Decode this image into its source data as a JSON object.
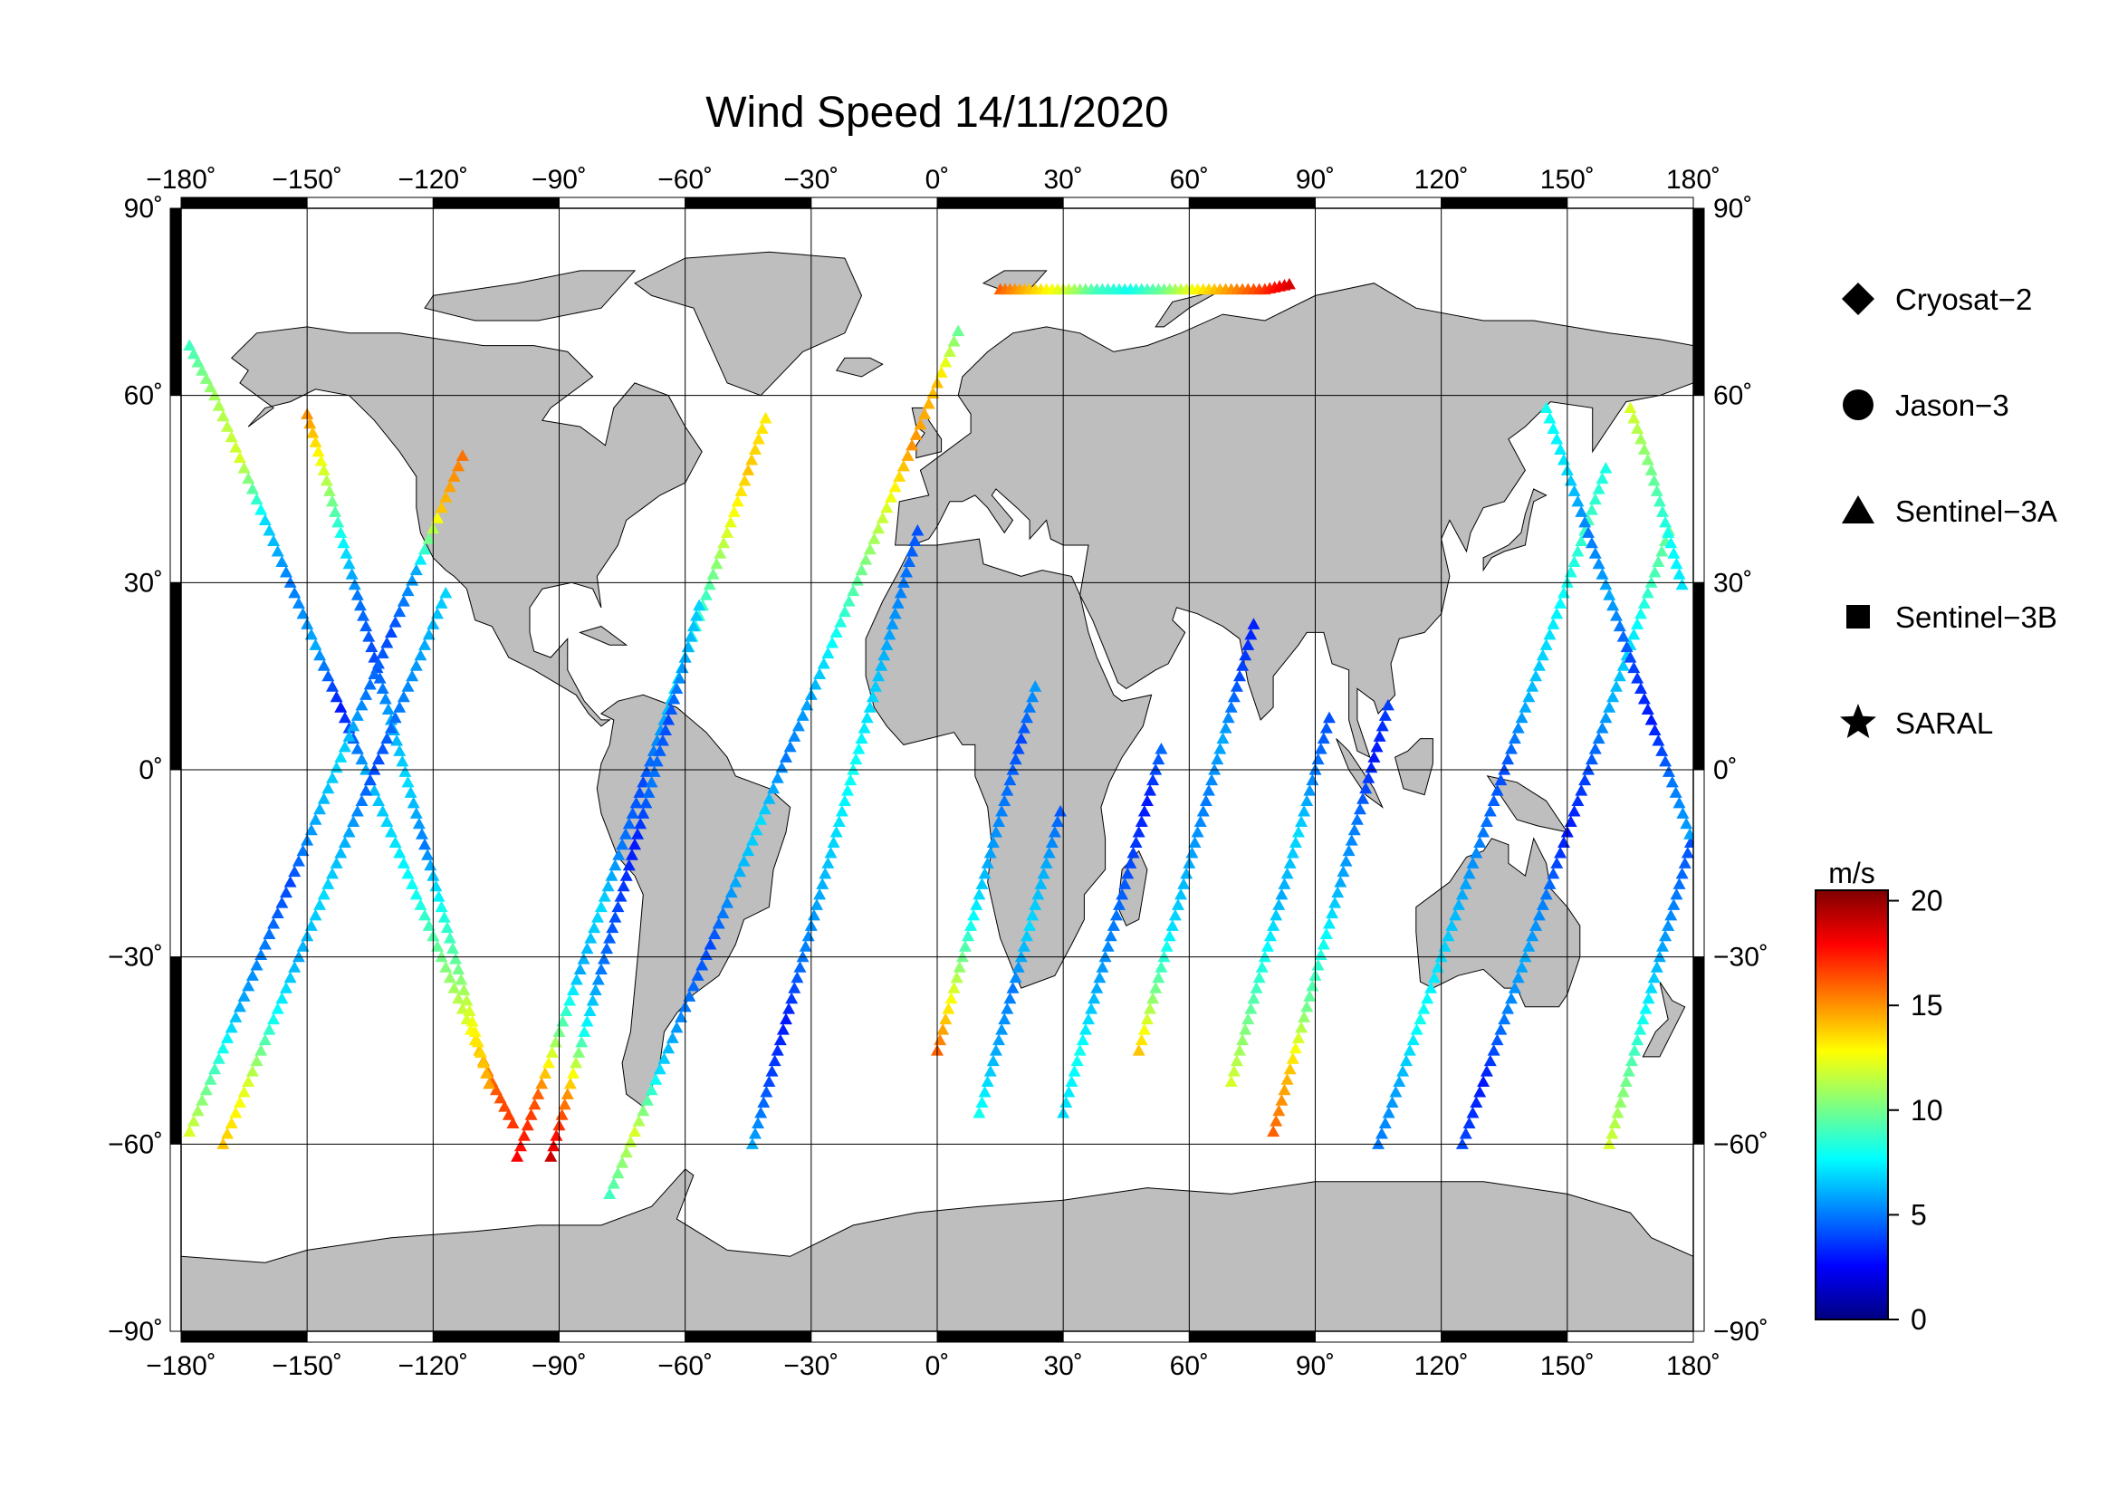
{
  "title": "Wind Speed 14/11/2020",
  "map": {
    "lon_range": [
      -180,
      180
    ],
    "lat_range": [
      -90,
      90
    ],
    "lon_ticks": [
      -180,
      -150,
      -120,
      -90,
      -60,
      -30,
      0,
      30,
      60,
      90,
      120,
      150,
      180
    ],
    "lat_ticks": [
      90,
      60,
      30,
      0,
      -30,
      -60,
      -90
    ],
    "lon_tick_labels": [
      "−180˚",
      "−150˚",
      "−120˚",
      "−90˚",
      "−60˚",
      "−30˚",
      "0˚",
      "30˚",
      "60˚",
      "90˚",
      "120˚",
      "150˚",
      "180˚"
    ],
    "lat_tick_labels": [
      "90˚",
      "60˚",
      "30˚",
      "0˚",
      "−30˚",
      "−60˚",
      "−90˚"
    ],
    "land_color": "#bebebe",
    "ocean_color": "#ffffff",
    "grid": true
  },
  "legend": {
    "items": [
      {
        "label": "Cryosat−2",
        "symbol": "diamond"
      },
      {
        "label": "Jason−3",
        "symbol": "circle"
      },
      {
        "label": "Sentinel−3A",
        "symbol": "triangle"
      },
      {
        "label": "Sentinel−3B",
        "symbol": "square"
      },
      {
        "label": "SARAL",
        "symbol": "star"
      }
    ]
  },
  "colorbar": {
    "unit": "m/s",
    "min": 0,
    "max": 20.5,
    "ticks": [
      0,
      5,
      10,
      15,
      20
    ],
    "tick_labels": [
      "0",
      "5",
      "10",
      "15",
      "20"
    ],
    "colormap": "jet"
  },
  "chart_data": {
    "type": "scatter",
    "description_units": "lon/lat degrees, wind speed m/s",
    "tracks": [
      {
        "satellite": "Sentinel-3A",
        "points": [
          [
            -178,
            68,
            9
          ],
          [
            -172,
            60,
            11
          ],
          [
            -166,
            50,
            12
          ],
          [
            -160,
            40,
            7
          ],
          [
            -154,
            30,
            5
          ],
          [
            -148,
            20,
            6
          ],
          [
            -142,
            10,
            3
          ],
          [
            -136,
            0,
            6
          ],
          [
            -130,
            -10,
            7
          ],
          [
            -124,
            -20,
            8
          ],
          [
            -118,
            -30,
            10
          ],
          [
            -112,
            -40,
            12
          ],
          [
            -106,
            -50,
            16
          ],
          [
            -100,
            -58,
            17
          ]
        ]
      },
      {
        "satellite": "Sentinel-3A",
        "points": [
          [
            -150,
            57,
            15
          ],
          [
            -146,
            48,
            12
          ],
          [
            -142,
            38,
            8
          ],
          [
            -138,
            28,
            5
          ],
          [
            -134,
            18,
            4
          ],
          [
            -130,
            8,
            6
          ],
          [
            -126,
            -2,
            7
          ],
          [
            -122,
            -12,
            5
          ],
          [
            -118,
            -22,
            8
          ],
          [
            -114,
            -32,
            10
          ],
          [
            -110,
            -42,
            13
          ],
          [
            -106,
            -52,
            15
          ]
        ]
      },
      {
        "satellite": "Sentinel-3A",
        "points": [
          [
            -178,
            -58,
            12
          ],
          [
            -172,
            -48,
            9
          ],
          [
            -166,
            -38,
            6
          ],
          [
            -160,
            -28,
            5
          ],
          [
            -154,
            -18,
            4
          ],
          [
            -148,
            -8,
            6
          ],
          [
            -142,
            2,
            7
          ],
          [
            -136,
            12,
            5
          ],
          [
            -130,
            22,
            4
          ],
          [
            -124,
            32,
            6
          ],
          [
            -118,
            42,
            14
          ],
          [
            -112,
            52,
            16
          ]
        ]
      },
      {
        "satellite": "Sentinel-3A",
        "points": [
          [
            -170,
            -60,
            14
          ],
          [
            -164,
            -50,
            12
          ],
          [
            -158,
            -40,
            8
          ],
          [
            -152,
            -30,
            6
          ],
          [
            -146,
            -20,
            7
          ],
          [
            -140,
            -10,
            6
          ],
          [
            -134,
            0,
            4
          ],
          [
            -128,
            10,
            5
          ],
          [
            -122,
            20,
            6
          ],
          [
            -116,
            30,
            7
          ]
        ]
      },
      {
        "satellite": "Sentinel-3A",
        "points": [
          [
            -100,
            -62,
            18
          ],
          [
            -95,
            -52,
            16
          ],
          [
            -90,
            -42,
            10
          ],
          [
            -85,
            -32,
            6
          ],
          [
            -80,
            -22,
            7
          ],
          [
            -75,
            -12,
            5
          ],
          [
            -70,
            -2,
            4
          ],
          [
            -65,
            8,
            6
          ],
          [
            -60,
            18,
            8
          ],
          [
            -55,
            28,
            9
          ],
          [
            -50,
            38,
            12
          ],
          [
            -45,
            48,
            14
          ],
          [
            -40,
            58,
            13
          ]
        ]
      },
      {
        "satellite": "Sentinel-3A",
        "points": [
          [
            -92,
            -62,
            19
          ],
          [
            -88,
            -52,
            15
          ],
          [
            -84,
            -42,
            8
          ],
          [
            -80,
            -32,
            5
          ],
          [
            -76,
            -22,
            4
          ],
          [
            -72,
            -12,
            3
          ],
          [
            -68,
            -2,
            5
          ],
          [
            -64,
            8,
            4
          ],
          [
            -60,
            18,
            6
          ],
          [
            -56,
            28,
            7
          ]
        ]
      },
      {
        "satellite": "Sentinel-3A",
        "points": [
          [
            -78,
            -68,
            9
          ],
          [
            -72,
            -58,
            12
          ],
          [
            -66,
            -48,
            7
          ],
          [
            -60,
            -38,
            5
          ],
          [
            -54,
            -28,
            4
          ],
          [
            -48,
            -18,
            6
          ],
          [
            -42,
            -8,
            7
          ],
          [
            -36,
            2,
            5
          ],
          [
            -30,
            12,
            6
          ],
          [
            -24,
            22,
            8
          ],
          [
            -18,
            32,
            10
          ],
          [
            -12,
            42,
            12
          ],
          [
            -6,
            52,
            15
          ],
          [
            0,
            62,
            14
          ],
          [
            6,
            72,
            9
          ]
        ]
      },
      {
        "satellite": "Sentinel-3A",
        "points": [
          [
            -44,
            -60,
            6
          ],
          [
            -40,
            -50,
            4
          ],
          [
            -36,
            -40,
            3
          ],
          [
            -32,
            -30,
            5
          ],
          [
            -28,
            -20,
            6
          ],
          [
            -24,
            -10,
            7
          ],
          [
            -20,
            0,
            8
          ],
          [
            -16,
            10,
            7
          ],
          [
            -12,
            20,
            6
          ],
          [
            -8,
            30,
            5
          ],
          [
            -4,
            40,
            4
          ]
        ]
      },
      {
        "satellite": "Sentinel-3A",
        "points": [
          [
            0,
            -45,
            16
          ],
          [
            4,
            -35,
            12
          ],
          [
            8,
            -25,
            8
          ],
          [
            12,
            -15,
            6
          ],
          [
            16,
            -5,
            5
          ],
          [
            20,
            5,
            4
          ],
          [
            24,
            15,
            6
          ]
        ]
      },
      {
        "satellite": "Sentinel-3A",
        "points": [
          [
            10,
            -55,
            8
          ],
          [
            14,
            -45,
            6
          ],
          [
            18,
            -35,
            5
          ],
          [
            22,
            -25,
            7
          ],
          [
            26,
            -15,
            6
          ],
          [
            30,
            -5,
            4
          ]
        ]
      },
      {
        "satellite": "Sentinel-3A",
        "points": [
          [
            15,
            77,
            16
          ],
          [
            22,
            77,
            14
          ],
          [
            30,
            77,
            12
          ],
          [
            38,
            77,
            9
          ],
          [
            46,
            77,
            8
          ],
          [
            54,
            77,
            10
          ],
          [
            62,
            77,
            13
          ],
          [
            70,
            77,
            15
          ],
          [
            78,
            77,
            17
          ],
          [
            85,
            78,
            19
          ]
        ]
      },
      {
        "satellite": "Sentinel-3A",
        "points": [
          [
            30,
            -55,
            7
          ],
          [
            34,
            -45,
            8
          ],
          [
            38,
            -35,
            6
          ],
          [
            42,
            -25,
            5
          ],
          [
            46,
            -15,
            4
          ],
          [
            50,
            -5,
            3
          ],
          [
            54,
            5,
            5
          ]
        ]
      },
      {
        "satellite": "Sentinel-3A",
        "points": [
          [
            48,
            -45,
            14
          ],
          [
            52,
            -35,
            10
          ],
          [
            56,
            -25,
            7
          ],
          [
            60,
            -15,
            6
          ],
          [
            64,
            -5,
            5
          ],
          [
            68,
            5,
            6
          ],
          [
            72,
            15,
            4
          ],
          [
            76,
            25,
            3
          ]
        ]
      },
      {
        "satellite": "Sentinel-3A",
        "points": [
          [
            80,
            -58,
            16
          ],
          [
            84,
            -48,
            14
          ],
          [
            88,
            -38,
            10
          ],
          [
            92,
            -28,
            8
          ],
          [
            96,
            -18,
            6
          ],
          [
            100,
            -8,
            5
          ],
          [
            104,
            2,
            3
          ],
          [
            108,
            12,
            4
          ]
        ]
      },
      {
        "satellite": "Sentinel-3A",
        "points": [
          [
            70,
            -50,
            12
          ],
          [
            74,
            -40,
            10
          ],
          [
            78,
            -30,
            8
          ],
          [
            82,
            -20,
            6
          ],
          [
            86,
            -10,
            7
          ],
          [
            90,
            0,
            5
          ],
          [
            94,
            10,
            4
          ]
        ]
      },
      {
        "satellite": "Sentinel-3A",
        "points": [
          [
            105,
            -60,
            5
          ],
          [
            110,
            -50,
            6
          ],
          [
            115,
            -40,
            8
          ],
          [
            120,
            -30,
            7
          ],
          [
            125,
            -20,
            6
          ],
          [
            130,
            -10,
            5
          ],
          [
            135,
            0,
            4
          ],
          [
            140,
            10,
            6
          ],
          [
            145,
            20,
            7
          ],
          [
            150,
            30,
            8
          ],
          [
            155,
            40,
            9
          ],
          [
            160,
            50,
            8
          ]
        ]
      },
      {
        "satellite": "Sentinel-3A",
        "points": [
          [
            125,
            -60,
            4
          ],
          [
            130,
            -50,
            3
          ],
          [
            135,
            -40,
            5
          ],
          [
            140,
            -30,
            6
          ],
          [
            145,
            -20,
            5
          ],
          [
            150,
            -10,
            3
          ],
          [
            155,
            0,
            4
          ],
          [
            160,
            10,
            6
          ],
          [
            165,
            20,
            7
          ],
          [
            170,
            30,
            9
          ],
          [
            175,
            40,
            10
          ]
        ]
      },
      {
        "satellite": "Sentinel-3A",
        "points": [
          [
            160,
            -60,
            12
          ],
          [
            164,
            -50,
            10
          ],
          [
            168,
            -40,
            8
          ],
          [
            172,
            -30,
            6
          ],
          [
            176,
            -20,
            5
          ],
          [
            180,
            -10,
            4
          ]
        ]
      },
      {
        "satellite": "Sentinel-3A",
        "points": [
          [
            145,
            58,
            8
          ],
          [
            150,
            48,
            7
          ],
          [
            155,
            38,
            5
          ],
          [
            160,
            28,
            6
          ],
          [
            165,
            18,
            4
          ],
          [
            170,
            8,
            3
          ],
          [
            175,
            -2,
            5
          ],
          [
            180,
            -12,
            6
          ]
        ]
      },
      {
        "satellite": "Sentinel-3A",
        "points": [
          [
            165,
            58,
            12
          ],
          [
            170,
            48,
            10
          ],
          [
            174,
            38,
            8
          ],
          [
            178,
            28,
            7
          ]
        ]
      }
    ]
  }
}
